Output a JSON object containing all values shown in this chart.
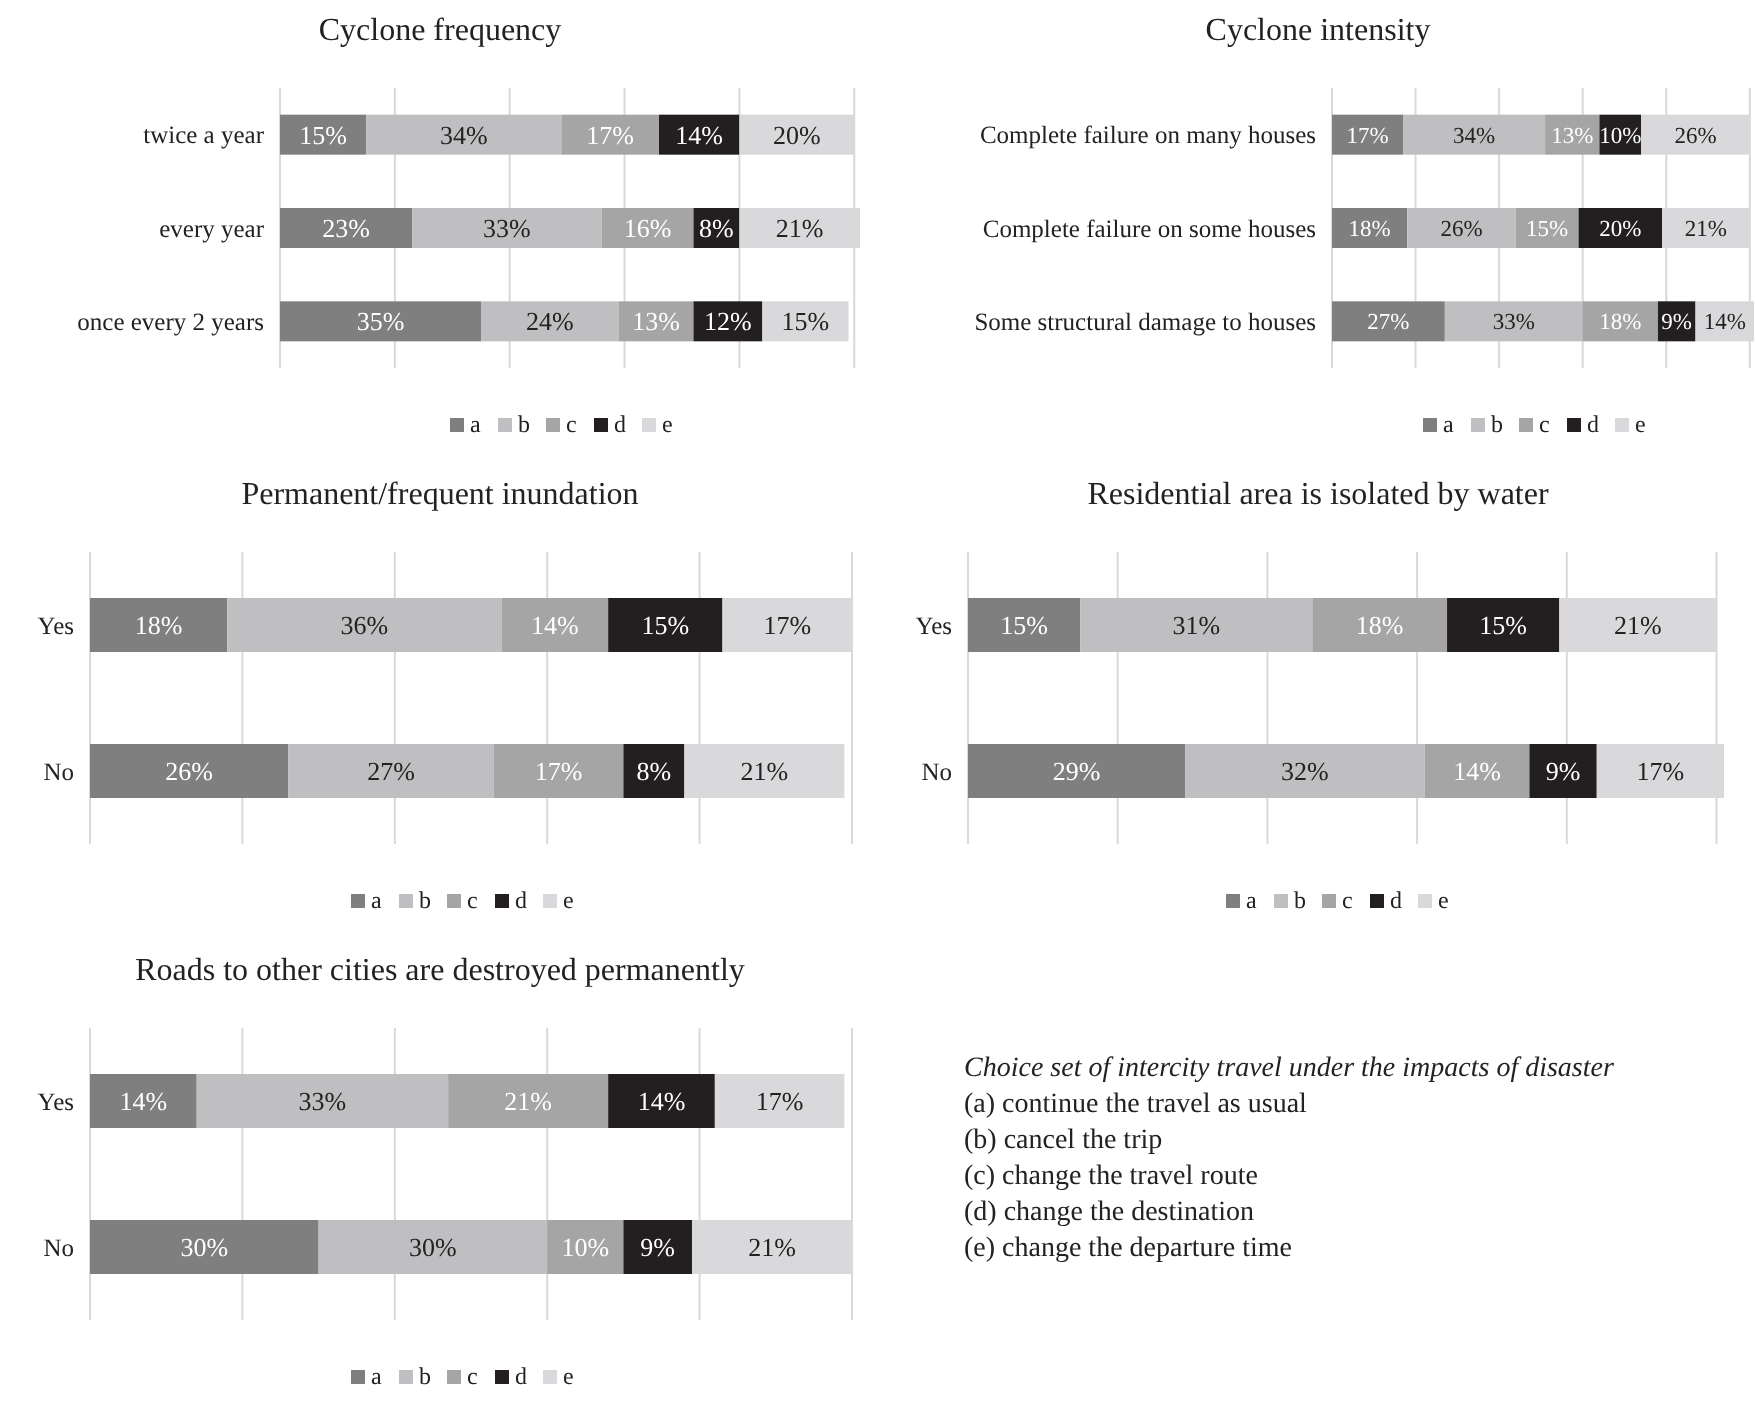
{
  "chart_data": [
    {
      "type": "bar",
      "orientation": "horizontal",
      "stacked": true,
      "title": "Cyclone frequency",
      "categories": [
        "twice a year",
        "every year",
        "once every 2 years"
      ],
      "xlim": [
        0,
        101
      ],
      "xticks": [
        {
          "value": 0,
          "label": null
        },
        {
          "value": 20,
          "label": null
        },
        {
          "value": 40,
          "label": null
        },
        {
          "value": 60,
          "label": null
        },
        {
          "value": 80,
          "label": null
        },
        {
          "value": 100,
          "label": null
        }
      ],
      "tick_labels": "y",
      "grid": "x",
      "legend": "bottom",
      "series": [
        {
          "name": "a",
          "color": "#7f7f80",
          "values": [
            15,
            23,
            35
          ],
          "value_labels": [
            "15%",
            "23%",
            "35%"
          ]
        },
        {
          "name": "b",
          "color": "#bfbfc1",
          "values": [
            34,
            33,
            24
          ],
          "value_labels": [
            "34%",
            "33%",
            "24%"
          ]
        },
        {
          "name": "c",
          "color": "#a5a5a6",
          "values": [
            17,
            16,
            13
          ],
          "value_labels": [
            "17%",
            "16%",
            "13%"
          ]
        },
        {
          "name": "d",
          "color": "#231f20",
          "values": [
            14,
            8,
            12
          ],
          "value_labels": [
            "14%",
            "8%",
            "12%"
          ]
        },
        {
          "name": "e",
          "color": "#d9d9db",
          "values": [
            20,
            21,
            15
          ],
          "value_labels": [
            "20%",
            "21%",
            "15%"
          ]
        }
      ]
    },
    {
      "type": "bar",
      "orientation": "horizontal",
      "stacked": true,
      "title": "Cyclone intensity",
      "categories": [
        "Complete failure on many houses",
        "Complete failure on some houses",
        "Some structural damage to houses"
      ],
      "xlim": [
        0,
        101
      ],
      "xticks": [
        {
          "value": 0,
          "label": null
        },
        {
          "value": 20,
          "label": null
        },
        {
          "value": 40,
          "label": null
        },
        {
          "value": 60,
          "label": null
        },
        {
          "value": 80,
          "label": null
        },
        {
          "value": 100,
          "label": null
        }
      ],
      "tick_labels": "y",
      "grid": "x",
      "legend": "bottom",
      "series": [
        {
          "name": "a",
          "color": "#7f7f80",
          "values": [
            17,
            18,
            27
          ],
          "value_labels": [
            "17%",
            "18%",
            "27%"
          ]
        },
        {
          "name": "b",
          "color": "#bfbfc1",
          "values": [
            34,
            26,
            33
          ],
          "value_labels": [
            "34%",
            "26%",
            "33%"
          ]
        },
        {
          "name": "c",
          "color": "#a5a5a6",
          "values": [
            13,
            15,
            18
          ],
          "value_labels": [
            "13%",
            "15%",
            "18%"
          ]
        },
        {
          "name": "d",
          "color": "#231f20",
          "values": [
            10,
            20,
            9
          ],
          "value_labels": [
            "10%",
            "20%",
            "9%"
          ]
        },
        {
          "name": "e",
          "color": "#d9d9db",
          "values": [
            26,
            21,
            14
          ],
          "value_labels": [
            "26%",
            "21%",
            "14%"
          ]
        }
      ]
    },
    {
      "type": "bar",
      "orientation": "horizontal",
      "stacked": true,
      "title": "Permanent/frequent inundation",
      "categories": [
        "Yes",
        "No"
      ],
      "xlim": [
        0,
        100
      ],
      "xticks": [
        {
          "value": 0,
          "label": null
        },
        {
          "value": 20,
          "label": null
        },
        {
          "value": 40,
          "label": null
        },
        {
          "value": 60,
          "label": null
        },
        {
          "value": 80,
          "label": null
        },
        {
          "value": 100,
          "label": null
        }
      ],
      "tick_labels": "y",
      "grid": "x",
      "legend": "bottom",
      "series": [
        {
          "name": "a",
          "color": "#7f7f80",
          "values": [
            18,
            26
          ],
          "value_labels": [
            "18%",
            "26%"
          ]
        },
        {
          "name": "b",
          "color": "#bfbfc1",
          "values": [
            36,
            27
          ],
          "value_labels": [
            "36%",
            "27%"
          ]
        },
        {
          "name": "c",
          "color": "#a5a5a6",
          "values": [
            14,
            17
          ],
          "value_labels": [
            "14%",
            "17%"
          ]
        },
        {
          "name": "d",
          "color": "#231f20",
          "values": [
            15,
            8
          ],
          "value_labels": [
            "15%",
            "8%"
          ]
        },
        {
          "name": "e",
          "color": "#d9d9db",
          "values": [
            17,
            21
          ],
          "value_labels": [
            "17%",
            "21%"
          ]
        }
      ]
    },
    {
      "type": "bar",
      "orientation": "horizontal",
      "stacked": true,
      "title": "Residential area is isolated by water",
      "categories": [
        "Yes",
        "No"
      ],
      "xlim": [
        0,
        101
      ],
      "xticks": [
        {
          "value": 0,
          "label": null
        },
        {
          "value": 20,
          "label": null
        },
        {
          "value": 40,
          "label": null
        },
        {
          "value": 60,
          "label": null
        },
        {
          "value": 80,
          "label": null
        },
        {
          "value": 100,
          "label": null
        }
      ],
      "tick_labels": "y",
      "grid": "x",
      "legend": "bottom",
      "series": [
        {
          "name": "a",
          "color": "#7f7f80",
          "values": [
            15,
            29
          ],
          "value_labels": [
            "15%",
            "29%"
          ]
        },
        {
          "name": "b",
          "color": "#bfbfc1",
          "values": [
            31,
            32
          ],
          "value_labels": [
            "31%",
            "32%"
          ]
        },
        {
          "name": "c",
          "color": "#a5a5a6",
          "values": [
            18,
            14
          ],
          "value_labels": [
            "18%",
            "14%"
          ]
        },
        {
          "name": "d",
          "color": "#231f20",
          "values": [
            15,
            9
          ],
          "value_labels": [
            "15%",
            "9%"
          ]
        },
        {
          "name": "e",
          "color": "#d9d9db",
          "values": [
            21,
            17
          ],
          "value_labels": [
            "21%",
            "17%"
          ]
        }
      ]
    },
    {
      "type": "bar",
      "orientation": "horizontal",
      "stacked": true,
      "title": "Roads to other cities are destroyed permanently",
      "categories": [
        "Yes",
        "No"
      ],
      "xlim": [
        0,
        100
      ],
      "xticks": [
        {
          "value": 0,
          "label": null
        },
        {
          "value": 20,
          "label": null
        },
        {
          "value": 40,
          "label": null
        },
        {
          "value": 60,
          "label": null
        },
        {
          "value": 80,
          "label": null
        },
        {
          "value": 100,
          "label": null
        }
      ],
      "tick_labels": "y",
      "grid": "x",
      "legend": "bottom",
      "series": [
        {
          "name": "a",
          "color": "#7f7f80",
          "values": [
            14,
            30
          ],
          "value_labels": [
            "14%",
            "30%"
          ]
        },
        {
          "name": "b",
          "color": "#bfbfc1",
          "values": [
            33,
            30
          ],
          "value_labels": [
            "33%",
            "30%"
          ]
        },
        {
          "name": "c",
          "color": "#a5a5a6",
          "values": [
            21,
            10
          ],
          "value_labels": [
            "21%",
            "10%"
          ]
        },
        {
          "name": "d",
          "color": "#231f20",
          "values": [
            14,
            9
          ],
          "value_labels": [
            "14%",
            "9%"
          ]
        },
        {
          "name": "e",
          "color": "#d9d9db",
          "values": [
            17,
            21
          ],
          "value_labels": [
            "17%",
            "21%"
          ]
        }
      ]
    },
    {
      "type": "other",
      "title": "Choice set of intercity travel under the impacts of disaster",
      "annotations": [
        "(a) continue the travel as usual",
        "(b) cancel the trip",
        "(c) change the travel route",
        "(d) change the destination",
        "(e) change the departure time"
      ]
    }
  ]
}
